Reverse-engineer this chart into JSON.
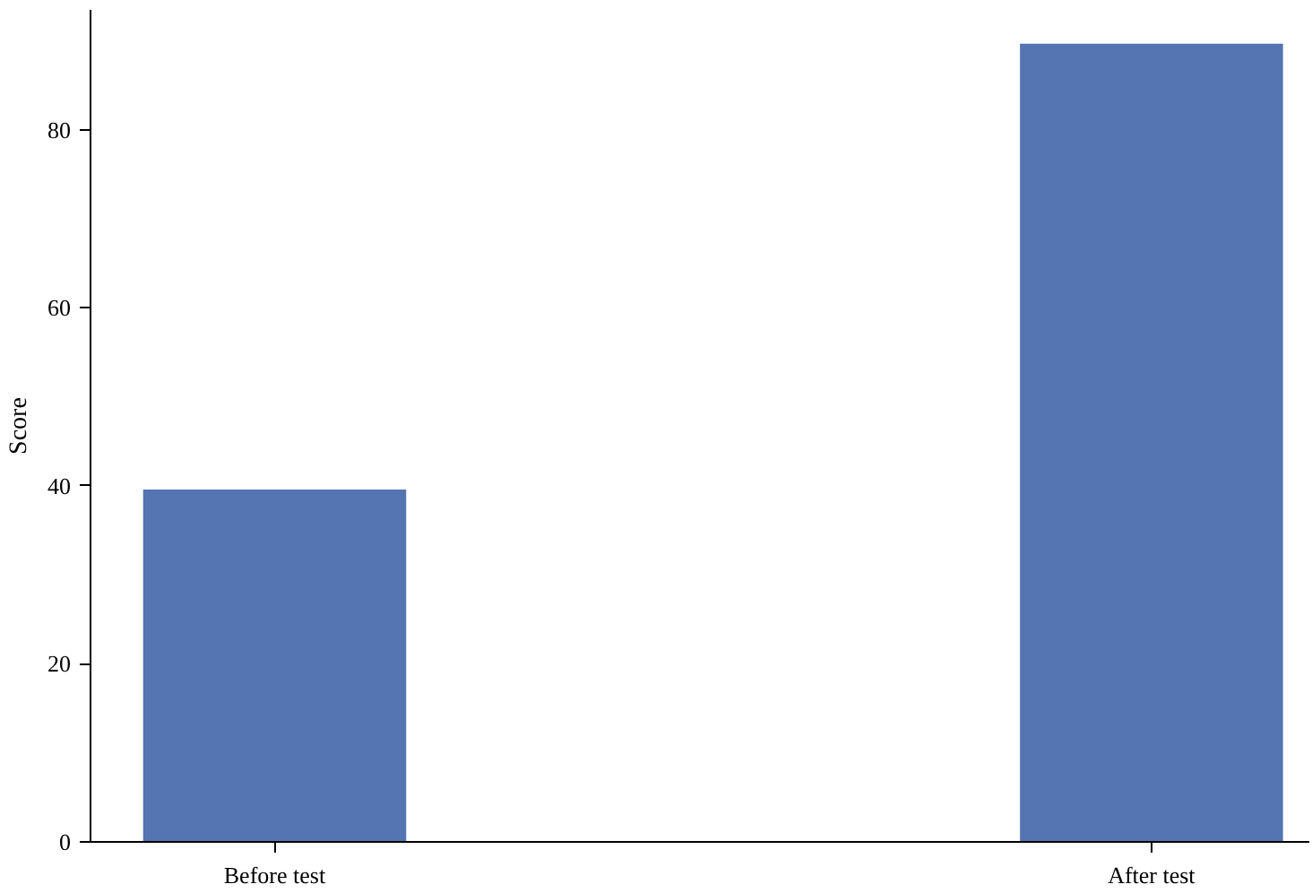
{
  "chart_data": {
    "type": "bar",
    "ylabel": "Score",
    "categories": [
      "Before test",
      "After test"
    ],
    "series": [
      {
        "color": "#5474b2",
        "values": [
          39.6,
          89.7
        ]
      }
    ],
    "ylim": [
      0,
      93.5
    ],
    "yticks": [
      0,
      20,
      40,
      60,
      80
    ],
    "grid": false
  }
}
